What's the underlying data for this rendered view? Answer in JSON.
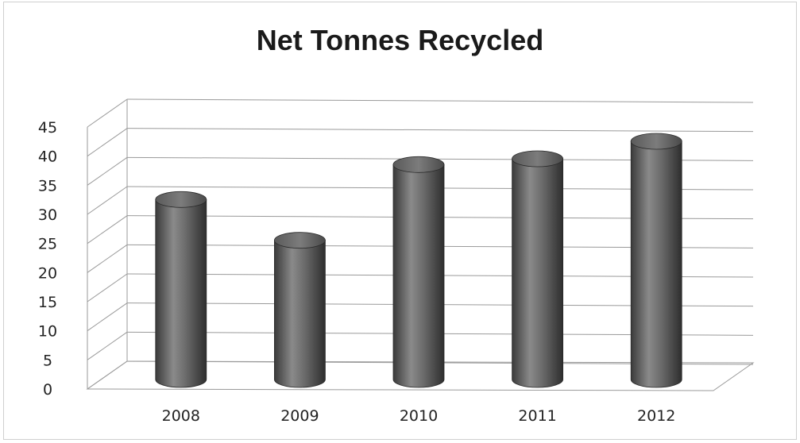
{
  "chart_data": {
    "type": "bar",
    "title": "Net Tonnes Recycled",
    "categories": [
      "2008",
      "2009",
      "2010",
      "2011",
      "2012"
    ],
    "values": [
      32,
      25,
      38,
      39,
      42
    ],
    "ylim": [
      0,
      45
    ],
    "yticks": [
      "0",
      "5",
      "10",
      "15",
      "20",
      "25",
      "30",
      "35",
      "40",
      "45"
    ],
    "xlabel": "",
    "ylabel": "",
    "grid": true,
    "style": "3d-cylinder",
    "bar_color": "#6e6e6e"
  }
}
